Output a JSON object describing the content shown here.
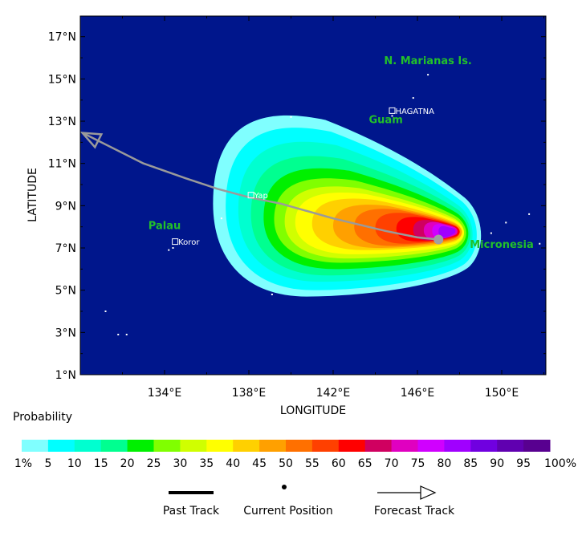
{
  "chart_data": {
    "type": "heatmap",
    "xlabel": "LONGITUDE",
    "ylabel": "LATITUDE",
    "xlim": [
      130,
      152
    ],
    "ylim": [
      1,
      18
    ],
    "x_ticks": [
      {
        "value": 134,
        "label": "134°E"
      },
      {
        "value": 138,
        "label": "138°E"
      },
      {
        "value": 142,
        "label": "142°E"
      },
      {
        "value": 146,
        "label": "146°E"
      },
      {
        "value": 150,
        "label": "150°E"
      }
    ],
    "y_ticks": [
      {
        "value": 1,
        "label": "1°N"
      },
      {
        "value": 3,
        "label": "3°N"
      },
      {
        "value": 5,
        "label": "5°N"
      },
      {
        "value": 7,
        "label": "7°N"
      },
      {
        "value": 9,
        "label": "9°N"
      },
      {
        "value": 11,
        "label": "11°N"
      },
      {
        "value": 13,
        "label": "13°N"
      },
      {
        "value": 15,
        "label": "15°N"
      },
      {
        "value": 17,
        "label": "17°N"
      }
    ],
    "background_color": "#00168c",
    "probability_field": {
      "center": [
        147.5,
        7.8
      ],
      "levels": [
        {
          "p": 1,
          "lon_min": 136.3,
          "lon_max": 149.0,
          "lat_min": 4.7,
          "lat_max": 13.5
        },
        {
          "p": 5,
          "lon_min": 136.9,
          "lon_max": 148.8,
          "lat_min": 5.0,
          "lat_max": 12.9
        },
        {
          "p": 10,
          "lon_min": 137.5,
          "lon_max": 148.6,
          "lat_min": 5.4,
          "lat_max": 12.2
        },
        {
          "p": 15,
          "lon_min": 138.1,
          "lon_max": 148.5,
          "lat_min": 5.7,
          "lat_max": 11.5
        },
        {
          "p": 20,
          "lon_min": 138.7,
          "lon_max": 148.4,
          "lat_min": 6.0,
          "lat_max": 10.9
        },
        {
          "p": 25,
          "lon_min": 139.2,
          "lon_max": 148.3,
          "lat_min": 6.3,
          "lat_max": 10.4
        },
        {
          "p": 30,
          "lon_min": 139.7,
          "lon_max": 148.2,
          "lat_min": 6.5,
          "lat_max": 10.0
        },
        {
          "p": 35,
          "lon_min": 140.2,
          "lon_max": 148.2,
          "lat_min": 6.7,
          "lat_max": 9.7
        },
        {
          "p": 40,
          "lon_min": 141.0,
          "lon_max": 148.1,
          "lat_min": 6.9,
          "lat_max": 9.4
        },
        {
          "p": 45,
          "lon_min": 142.0,
          "lon_max": 148.1,
          "lat_min": 7.0,
          "lat_max": 9.1
        },
        {
          "p": 50,
          "lon_min": 143.0,
          "lon_max": 148.0,
          "lat_min": 7.1,
          "lat_max": 8.9
        },
        {
          "p": 55,
          "lon_min": 144.0,
          "lon_max": 148.0,
          "lat_min": 7.2,
          "lat_max": 8.7
        },
        {
          "p": 60,
          "lon_min": 145.0,
          "lon_max": 148.0,
          "lat_min": 7.3,
          "lat_max": 8.5
        },
        {
          "p": 65,
          "lon_min": 145.8,
          "lon_max": 147.9,
          "lat_min": 7.35,
          "lat_max": 8.35
        },
        {
          "p": 70,
          "lon_min": 146.3,
          "lon_max": 147.9,
          "lat_min": 7.4,
          "lat_max": 8.25
        },
        {
          "p": 75,
          "lon_min": 146.7,
          "lon_max": 147.8,
          "lat_min": 7.45,
          "lat_max": 8.15
        },
        {
          "p": 80,
          "lon_min": 147.0,
          "lon_max": 147.8,
          "lat_min": 7.5,
          "lat_max": 8.05
        }
      ]
    },
    "forecast_track": [
      [
        147.0,
        7.4
      ],
      [
        146.0,
        7.5
      ],
      [
        144.5,
        7.8
      ],
      [
        142.0,
        8.4
      ],
      [
        139.5,
        9.1
      ],
      [
        138.0,
        9.4
      ],
      [
        136.5,
        9.8
      ],
      [
        135.0,
        10.3
      ],
      [
        133.0,
        11.0
      ],
      [
        130.1,
        12.45
      ]
    ],
    "current_position": [
      147.0,
      7.4
    ],
    "regions": [
      {
        "name": "N. Marianas Is.",
        "lon": 146.5,
        "lat": 15.7
      },
      {
        "name": "Guam",
        "lon": 144.5,
        "lat": 12.9
      },
      {
        "name": "Palau",
        "lon": 134.0,
        "lat": 7.9
      },
      {
        "name": "Micronesia",
        "lon": 150.0,
        "lat": 7.0
      }
    ],
    "cities": [
      {
        "name": "HAGATNA",
        "lon": 144.8,
        "lat": 13.5
      },
      {
        "name": "Yap",
        "lon": 138.1,
        "lat": 9.5
      },
      {
        "name": "Koror",
        "lon": 134.5,
        "lat": 7.3
      }
    ],
    "legend": {
      "title": "Probability",
      "labels": [
        "1%",
        "5",
        "10",
        "15",
        "20",
        "25",
        "30",
        "35",
        "40",
        "45",
        "50",
        "55",
        "60",
        "65",
        "70",
        "75",
        "80",
        "85",
        "90",
        "95",
        "100%"
      ],
      "colors": [
        "#80ffff",
        "#00ffff",
        "#00ffd0",
        "#00ff90",
        "#00f000",
        "#80ff00",
        "#d0ff00",
        "#ffff00",
        "#ffd000",
        "#ffa000",
        "#ff7000",
        "#ff4000",
        "#ff0000",
        "#d00060",
        "#e000c0",
        "#d000ff",
        "#a000ff",
        "#7000e0",
        "#6000b0",
        "#580090"
      ],
      "symbols": {
        "past_track": "Past Track",
        "current_position": "Current Position",
        "forecast_track": "Forecast Track"
      }
    }
  }
}
